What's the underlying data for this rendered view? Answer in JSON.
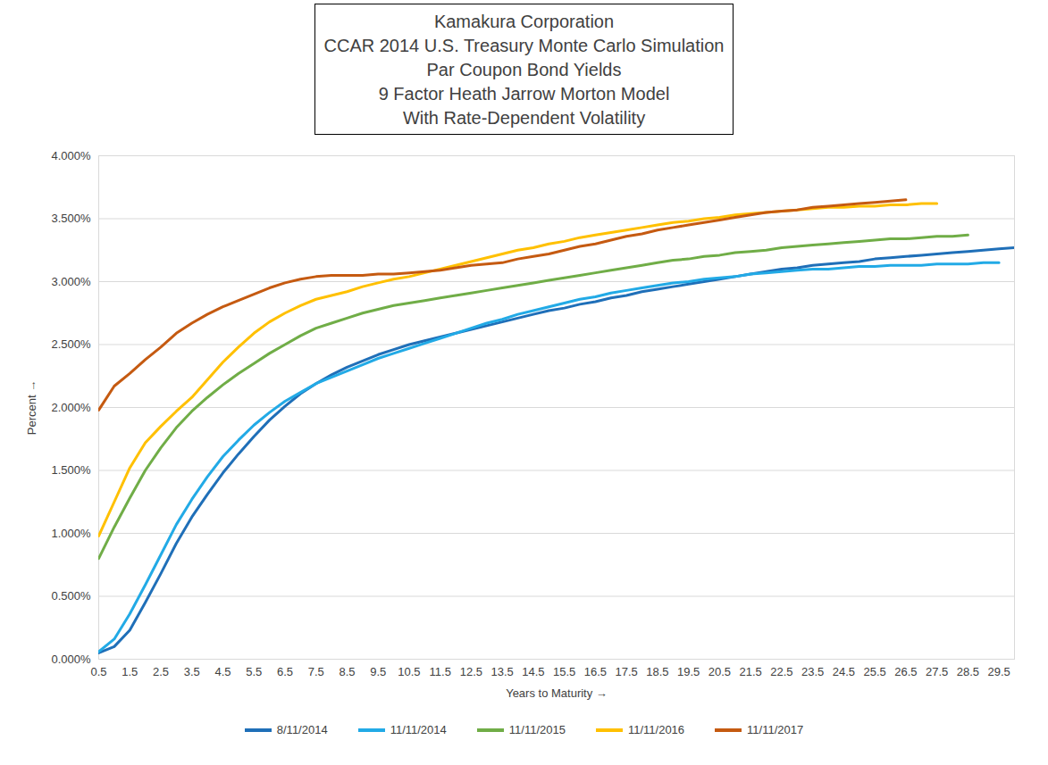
{
  "chart_data": {
    "type": "line",
    "title": "Kamakura Corporation\nCCAR 2014 U.S. Treasury Monte Carlo Simulation\nPar Coupon Bond Yields\n9 Factor Heath Jarrow Morton Model\nWith Rate-Dependent Volatility",
    "x_label": "Years to Maturity",
    "y_label": "Percent",
    "x": [
      0.5,
      1,
      1.5,
      2,
      2.5,
      3,
      3.5,
      4,
      4.5,
      5,
      5.5,
      6,
      6.5,
      7,
      7.5,
      8,
      8.5,
      9,
      9.5,
      10,
      10.5,
      11,
      11.5,
      12,
      12.5,
      13,
      13.5,
      14,
      14.5,
      15,
      15.5,
      16,
      16.5,
      17,
      17.5,
      18,
      18.5,
      19,
      19.5,
      20,
      20.5,
      21,
      21.5,
      22,
      22.5,
      23,
      23.5,
      24,
      24.5,
      25,
      25.5,
      26,
      26.5,
      27,
      27.5,
      28,
      28.5,
      29,
      29.5,
      30
    ],
    "series": [
      {
        "name": "8/11/2014",
        "color": "#1f6fb8",
        "values": [
          0.05,
          0.1,
          0.23,
          0.45,
          0.68,
          0.92,
          1.13,
          1.31,
          1.48,
          1.63,
          1.77,
          1.9,
          2.01,
          2.11,
          2.19,
          2.26,
          2.32,
          2.37,
          2.42,
          2.46,
          2.5,
          2.53,
          2.56,
          2.59,
          2.62,
          2.65,
          2.68,
          2.71,
          2.74,
          2.77,
          2.79,
          2.82,
          2.84,
          2.87,
          2.89,
          2.92,
          2.94,
          2.96,
          2.98,
          3.0,
          3.02,
          3.04,
          3.06,
          3.08,
          3.1,
          3.11,
          3.13,
          3.14,
          3.15,
          3.16,
          3.18,
          3.19,
          3.2,
          3.21,
          3.22,
          3.23,
          3.24,
          3.25,
          3.26,
          3.27
        ]
      },
      {
        "name": "11/11/2014",
        "color": "#22aae6",
        "values": [
          0.06,
          0.16,
          0.36,
          0.59,
          0.83,
          1.07,
          1.27,
          1.45,
          1.61,
          1.74,
          1.86,
          1.96,
          2.05,
          2.12,
          2.19,
          2.24,
          2.29,
          2.34,
          2.39,
          2.43,
          2.47,
          2.51,
          2.55,
          2.59,
          2.63,
          2.67,
          2.7,
          2.74,
          2.77,
          2.8,
          2.83,
          2.86,
          2.88,
          2.91,
          2.93,
          2.95,
          2.97,
          2.99,
          3.0,
          3.02,
          3.03,
          3.04,
          3.06,
          3.07,
          3.08,
          3.09,
          3.1,
          3.1,
          3.11,
          3.12,
          3.12,
          3.13,
          3.13,
          3.13,
          3.14,
          3.14,
          3.14,
          3.15,
          3.15,
          null
        ]
      },
      {
        "name": "11/11/2015",
        "color": "#70ad47",
        "values": [
          0.8,
          1.05,
          1.28,
          1.5,
          1.68,
          1.84,
          1.97,
          2.08,
          2.18,
          2.27,
          2.35,
          2.43,
          2.5,
          2.57,
          2.63,
          2.67,
          2.71,
          2.75,
          2.78,
          2.81,
          2.83,
          2.85,
          2.87,
          2.89,
          2.91,
          2.93,
          2.95,
          2.97,
          2.99,
          3.01,
          3.03,
          3.05,
          3.07,
          3.09,
          3.11,
          3.13,
          3.15,
          3.17,
          3.18,
          3.2,
          3.21,
          3.23,
          3.24,
          3.25,
          3.27,
          3.28,
          3.29,
          3.3,
          3.31,
          3.32,
          3.33,
          3.34,
          3.34,
          3.35,
          3.36,
          3.36,
          3.37,
          null,
          null,
          null
        ]
      },
      {
        "name": "11/11/2016",
        "color": "#ffc000",
        "values": [
          0.98,
          1.25,
          1.52,
          1.72,
          1.85,
          1.97,
          2.08,
          2.22,
          2.36,
          2.48,
          2.59,
          2.68,
          2.75,
          2.81,
          2.86,
          2.89,
          2.92,
          2.96,
          2.99,
          3.02,
          3.04,
          3.07,
          3.1,
          3.13,
          3.16,
          3.19,
          3.22,
          3.25,
          3.27,
          3.3,
          3.32,
          3.35,
          3.37,
          3.39,
          3.41,
          3.43,
          3.45,
          3.47,
          3.48,
          3.5,
          3.51,
          3.53,
          3.54,
          3.55,
          3.56,
          3.57,
          3.58,
          3.59,
          3.59,
          3.6,
          3.6,
          3.61,
          3.61,
          3.62,
          3.62,
          null,
          null,
          null,
          null,
          null
        ]
      },
      {
        "name": "11/11/2017",
        "color": "#c55a11",
        "values": [
          1.98,
          2.17,
          2.27,
          2.38,
          2.48,
          2.59,
          2.67,
          2.74,
          2.8,
          2.85,
          2.9,
          2.95,
          2.99,
          3.02,
          3.04,
          3.05,
          3.05,
          3.05,
          3.06,
          3.06,
          3.07,
          3.08,
          3.09,
          3.11,
          3.13,
          3.14,
          3.15,
          3.18,
          3.2,
          3.22,
          3.25,
          3.28,
          3.3,
          3.33,
          3.36,
          3.38,
          3.41,
          3.43,
          3.45,
          3.47,
          3.49,
          3.51,
          3.53,
          3.55,
          3.56,
          3.57,
          3.59,
          3.6,
          3.61,
          3.62,
          3.63,
          3.64,
          3.65,
          null,
          null,
          null,
          null,
          null,
          null,
          null
        ]
      }
    ],
    "xlim": [
      0.5,
      30
    ],
    "xticks": [
      0.5,
      1.5,
      2.5,
      3.5,
      4.5,
      5.5,
      6.5,
      7.5,
      8.5,
      9.5,
      10.5,
      11.5,
      12.5,
      13.5,
      14.5,
      15.5,
      16.5,
      17.5,
      18.5,
      19.5,
      20.5,
      21.5,
      22.5,
      23.5,
      24.5,
      25.5,
      26.5,
      27.5,
      28.5,
      29.5
    ],
    "ylim": [
      0,
      4
    ],
    "yticks": [
      {
        "value": 0,
        "label": "0.000%"
      },
      {
        "value": 0.5,
        "label": "0.500%"
      },
      {
        "value": 1,
        "label": "1.000%"
      },
      {
        "value": 1.5,
        "label": "1.500%"
      },
      {
        "value": 2,
        "label": "2.000%"
      },
      {
        "value": 2.5,
        "label": "2.500%"
      },
      {
        "value": 3,
        "label": "3.000%"
      },
      {
        "value": 3.5,
        "label": "3.500%"
      },
      {
        "value": 4,
        "label": "4.000%"
      }
    ],
    "grid": "y",
    "legend": "bottom"
  }
}
